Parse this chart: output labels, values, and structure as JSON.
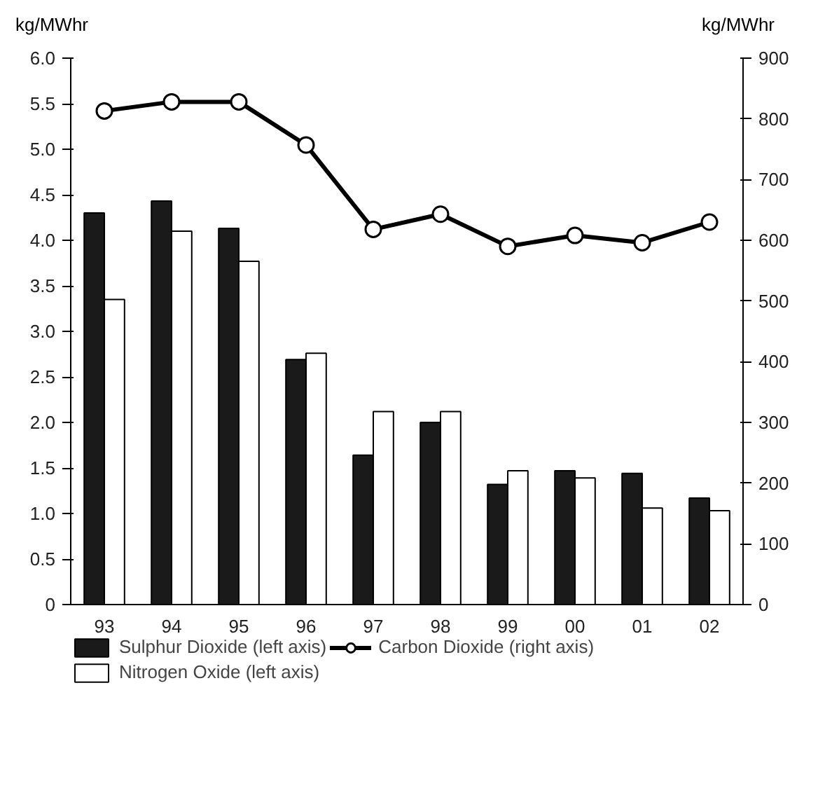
{
  "chart_data": {
    "type": "bar",
    "ylabel": "kg/MWhr",
    "y2label": "kg/MWhr",
    "categories": [
      "93",
      "94",
      "95",
      "96",
      "97",
      "98",
      "99",
      "00",
      "01",
      "02"
    ],
    "series": [
      {
        "name": "Sulphur Dioxide (left axis)",
        "color": "#1a1a1a",
        "values": [
          4.3,
          4.43,
          4.13,
          2.69,
          1.64,
          2.0,
          1.32,
          1.47,
          1.44,
          1.17
        ]
      },
      {
        "name": "Nitrogen Oxide (left axis)",
        "color": "#ffffff",
        "values": [
          3.35,
          4.1,
          3.77,
          2.76,
          2.12,
          2.12,
          1.47,
          1.39,
          1.06,
          1.03
        ]
      },
      {
        "name": "Carbon Dioxide (right axis)",
        "type": "line",
        "axis": "y2",
        "color": "#000000",
        "marker": "circle",
        "values": [
          813,
          828,
          828,
          757,
          618,
          643,
          590,
          608,
          596,
          630
        ]
      }
    ],
    "ylim": [
      0,
      6
    ],
    "yticks": [
      0,
      0.5,
      {
        "value": 1,
        "label": "1.0"
      },
      1.5,
      {
        "value": 2,
        "label": "2.0"
      },
      2.5,
      {
        "value": 3,
        "label": "3.0"
      },
      3.5,
      {
        "value": 4,
        "label": "4.0"
      },
      4.5,
      {
        "value": 5,
        "label": "5.0"
      },
      5.5,
      {
        "value": 6,
        "label": "6.0"
      }
    ],
    "y2lim": [
      0,
      900
    ],
    "y2ticks": [
      0,
      100,
      200,
      300,
      400,
      500,
      600,
      700,
      800,
      900
    ],
    "grid": false,
    "legend": "bottom"
  }
}
